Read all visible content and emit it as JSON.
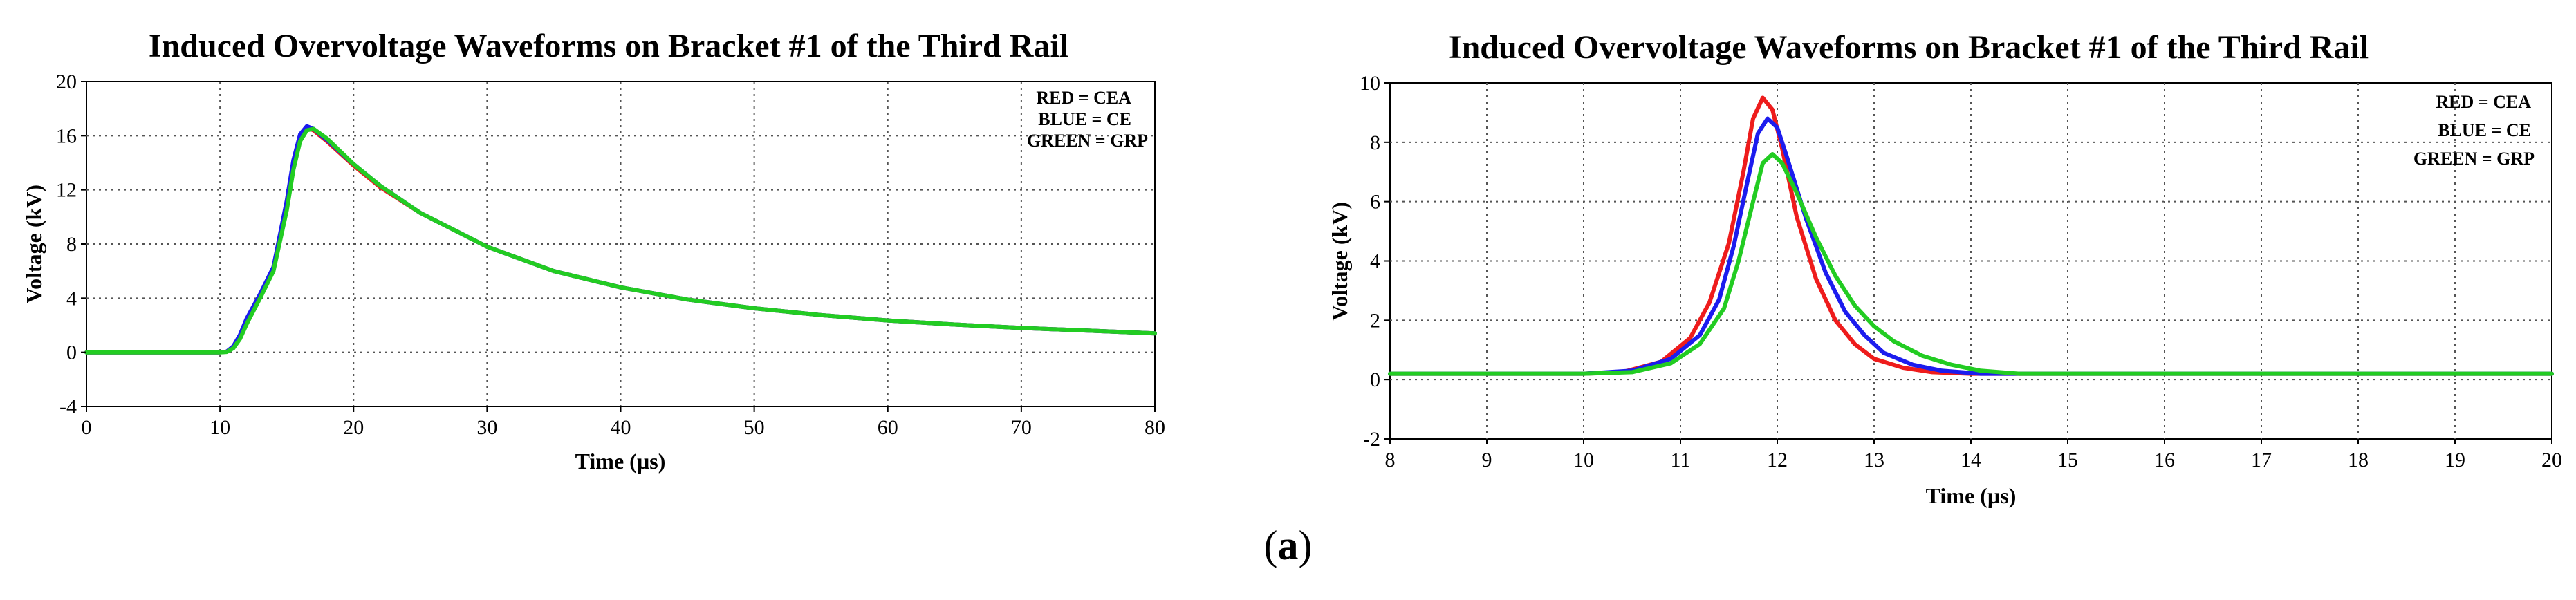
{
  "figure": {
    "panel_caption_open": "(",
    "panel_caption_letter": "a",
    "panel_caption_close": ")"
  },
  "colors": {
    "CEA": "#ee1c1c",
    "CE": "#1c1cee",
    "GRP": "#22cc22",
    "grid": "#555555"
  },
  "chart_data": [
    {
      "type": "line",
      "title": "Induced Overvoltage Waveforms on Bracket #1 of the Third Rail",
      "xlabel": "Time (µs)",
      "ylabel": "Voltage (kV)",
      "xlim": [
        0,
        80
      ],
      "ylim": [
        -4,
        20
      ],
      "xticks": [
        0,
        10,
        20,
        30,
        40,
        50,
        60,
        70,
        80
      ],
      "yticks": [
        -4,
        0,
        4,
        8,
        12,
        16,
        20
      ],
      "grid": true,
      "legend_position": "top-right",
      "legend": [
        "RED = CEA",
        "BLUE = CE",
        "GREEN = GRP"
      ],
      "series": [
        {
          "name": "CEA",
          "color": "#ee1c1c",
          "x": [
            0,
            10,
            10.5,
            11,
            11.5,
            12,
            13,
            14,
            15,
            15.5,
            16,
            16.5,
            17,
            18,
            20,
            22,
            25,
            30,
            35,
            40,
            45,
            50,
            55,
            60,
            65,
            70,
            75,
            80
          ],
          "y": [
            0,
            0,
            0.05,
            0.4,
            1.2,
            2.4,
            4.2,
            6.2,
            11.0,
            14.0,
            16.0,
            16.6,
            16.4,
            15.6,
            13.8,
            12.2,
            10.3,
            7.8,
            6.0,
            4.8,
            3.9,
            3.25,
            2.75,
            2.35,
            2.05,
            1.8,
            1.6,
            1.4
          ]
        },
        {
          "name": "CE",
          "color": "#1c1cee",
          "x": [
            0,
            10,
            10.5,
            11,
            11.5,
            12,
            13,
            14,
            15,
            15.5,
            16,
            16.5,
            17,
            18,
            20,
            22,
            25,
            30,
            35,
            40,
            45,
            50,
            55,
            60,
            65,
            70,
            75,
            80
          ],
          "y": [
            0,
            0,
            0.05,
            0.45,
            1.3,
            2.5,
            4.3,
            6.3,
            11.2,
            14.2,
            16.1,
            16.7,
            16.5,
            15.7,
            13.9,
            12.3,
            10.3,
            7.8,
            6.0,
            4.8,
            3.9,
            3.25,
            2.75,
            2.35,
            2.05,
            1.8,
            1.6,
            1.4
          ]
        },
        {
          "name": "GRP",
          "color": "#22cc22",
          "x": [
            0,
            10,
            10.5,
            11,
            11.5,
            12,
            13,
            14,
            15,
            15.5,
            16,
            16.5,
            17,
            18,
            20,
            22,
            25,
            30,
            35,
            40,
            45,
            50,
            55,
            60,
            65,
            70,
            75,
            80
          ],
          "y": [
            0,
            0,
            0.03,
            0.3,
            1.0,
            2.1,
            4.0,
            6.0,
            10.5,
            13.5,
            15.6,
            16.4,
            16.5,
            15.8,
            13.9,
            12.3,
            10.3,
            7.8,
            6.0,
            4.8,
            3.9,
            3.25,
            2.75,
            2.35,
            2.05,
            1.8,
            1.6,
            1.4
          ]
        }
      ]
    },
    {
      "type": "line",
      "title": "Induced Overvoltage Waveforms on Bracket #1 of the Third Rail",
      "xlabel": "Time (µs)",
      "ylabel": "Voltage (kV)",
      "xlim": [
        8,
        20
      ],
      "ylim": [
        -2,
        10
      ],
      "xticks": [
        8,
        9,
        10,
        11,
        12,
        13,
        14,
        15,
        16,
        17,
        18,
        19,
        20
      ],
      "yticks": [
        -2,
        0,
        2,
        4,
        6,
        8,
        10
      ],
      "grid": true,
      "legend_position": "top-right",
      "legend": [
        "RED = CEA",
        "BLUE = CE",
        "GREEN = GRP"
      ],
      "series": [
        {
          "name": "CEA",
          "color": "#ee1c1c",
          "x": [
            8,
            10,
            10.4,
            10.8,
            11.1,
            11.3,
            11.5,
            11.65,
            11.75,
            11.85,
            11.95,
            12.05,
            12.2,
            12.4,
            12.6,
            12.8,
            13.0,
            13.3,
            13.6,
            14.0,
            14.4,
            15,
            20
          ],
          "y": [
            0.2,
            0.2,
            0.25,
            0.6,
            1.4,
            2.6,
            4.6,
            7.0,
            8.8,
            9.5,
            9.1,
            7.8,
            5.5,
            3.4,
            2.0,
            1.2,
            0.7,
            0.4,
            0.25,
            0.2,
            0.2,
            0.2,
            0.2
          ]
        },
        {
          "name": "CE",
          "color": "#1c1cee",
          "x": [
            8,
            10,
            10.5,
            10.9,
            11.2,
            11.4,
            11.55,
            11.7,
            11.8,
            11.9,
            12.0,
            12.1,
            12.3,
            12.5,
            12.7,
            12.9,
            13.1,
            13.4,
            13.7,
            14.1,
            14.5,
            15,
            20
          ],
          "y": [
            0.2,
            0.2,
            0.3,
            0.7,
            1.5,
            2.7,
            4.5,
            6.8,
            8.3,
            8.8,
            8.5,
            7.5,
            5.4,
            3.6,
            2.3,
            1.5,
            0.9,
            0.5,
            0.3,
            0.2,
            0.2,
            0.2,
            0.2
          ]
        },
        {
          "name": "GRP",
          "color": "#22cc22",
          "x": [
            8,
            10,
            10.5,
            10.9,
            11.2,
            11.45,
            11.6,
            11.75,
            11.85,
            11.95,
            12.05,
            12.2,
            12.4,
            12.6,
            12.8,
            13.0,
            13.2,
            13.5,
            13.8,
            14.1,
            14.5,
            15,
            20
          ],
          "y": [
            0.2,
            0.2,
            0.25,
            0.55,
            1.2,
            2.4,
            4.0,
            6.0,
            7.3,
            7.6,
            7.3,
            6.3,
            4.8,
            3.5,
            2.5,
            1.8,
            1.3,
            0.8,
            0.5,
            0.3,
            0.2,
            0.2,
            0.2
          ]
        }
      ]
    }
  ]
}
